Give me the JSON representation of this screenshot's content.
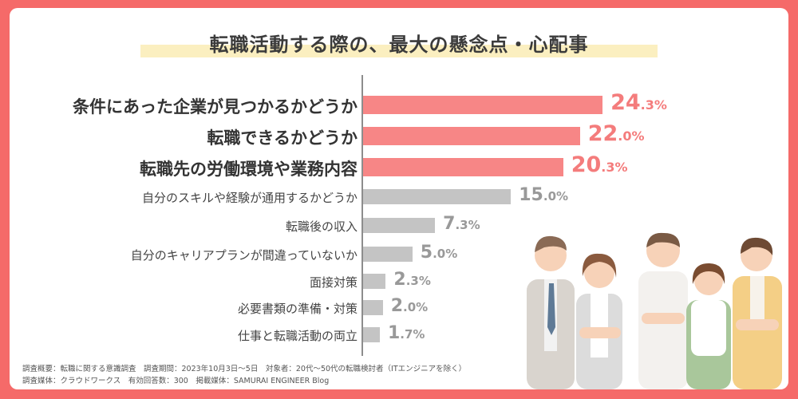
{
  "title": "転職活動する際の、最大の懸念点・心配事",
  "chart_data": {
    "type": "bar",
    "orientation": "horizontal",
    "categories": [
      "条件にあった企業が見つかるかどうか",
      "転職できるかどうか",
      "転職先の労働環境や業務内容",
      "自分のスキルや経験が通用するかどうか",
      "転職後の収入",
      "自分のキャリアプランが間違っていないか",
      "面接対策",
      "必要書類の準備・対策",
      "仕事と転職活動の両立"
    ],
    "values": [
      24.3,
      22.0,
      20.3,
      15.0,
      7.3,
      5.0,
      2.3,
      2.0,
      1.7
    ],
    "value_labels": [
      {
        "int": "24",
        "dec": ".3%"
      },
      {
        "int": "22",
        "dec": ".0%"
      },
      {
        "int": "20",
        "dec": ".3%"
      },
      {
        "int": "15",
        "dec": ".0%"
      },
      {
        "int": "7",
        "dec": ".3%"
      },
      {
        "int": "5",
        "dec": ".0%"
      },
      {
        "int": "2",
        "dec": ".3%"
      },
      {
        "int": "2",
        "dec": ".0%"
      },
      {
        "int": "1",
        "dec": ".7%"
      }
    ],
    "highlight_count": 3,
    "colors": {
      "highlight": "#f78686",
      "highlight_text": "#f47c7c",
      "normal": "#c4c4c4",
      "normal_text": "#999999"
    }
  },
  "footnotes": [
    "調査概要：転職に関する意識調査　調査期間：2023年10月3日〜5日　対象者：20代〜50代の転職検討者（ITエンジニアを除く）",
    "調査媒体：クラウドワークス　有効回答数：300　掲載媒体：SAMURAI ENGINEER Blog"
  ],
  "colors": {
    "frame": "#f56a69",
    "title_band": "#fbefc0"
  }
}
